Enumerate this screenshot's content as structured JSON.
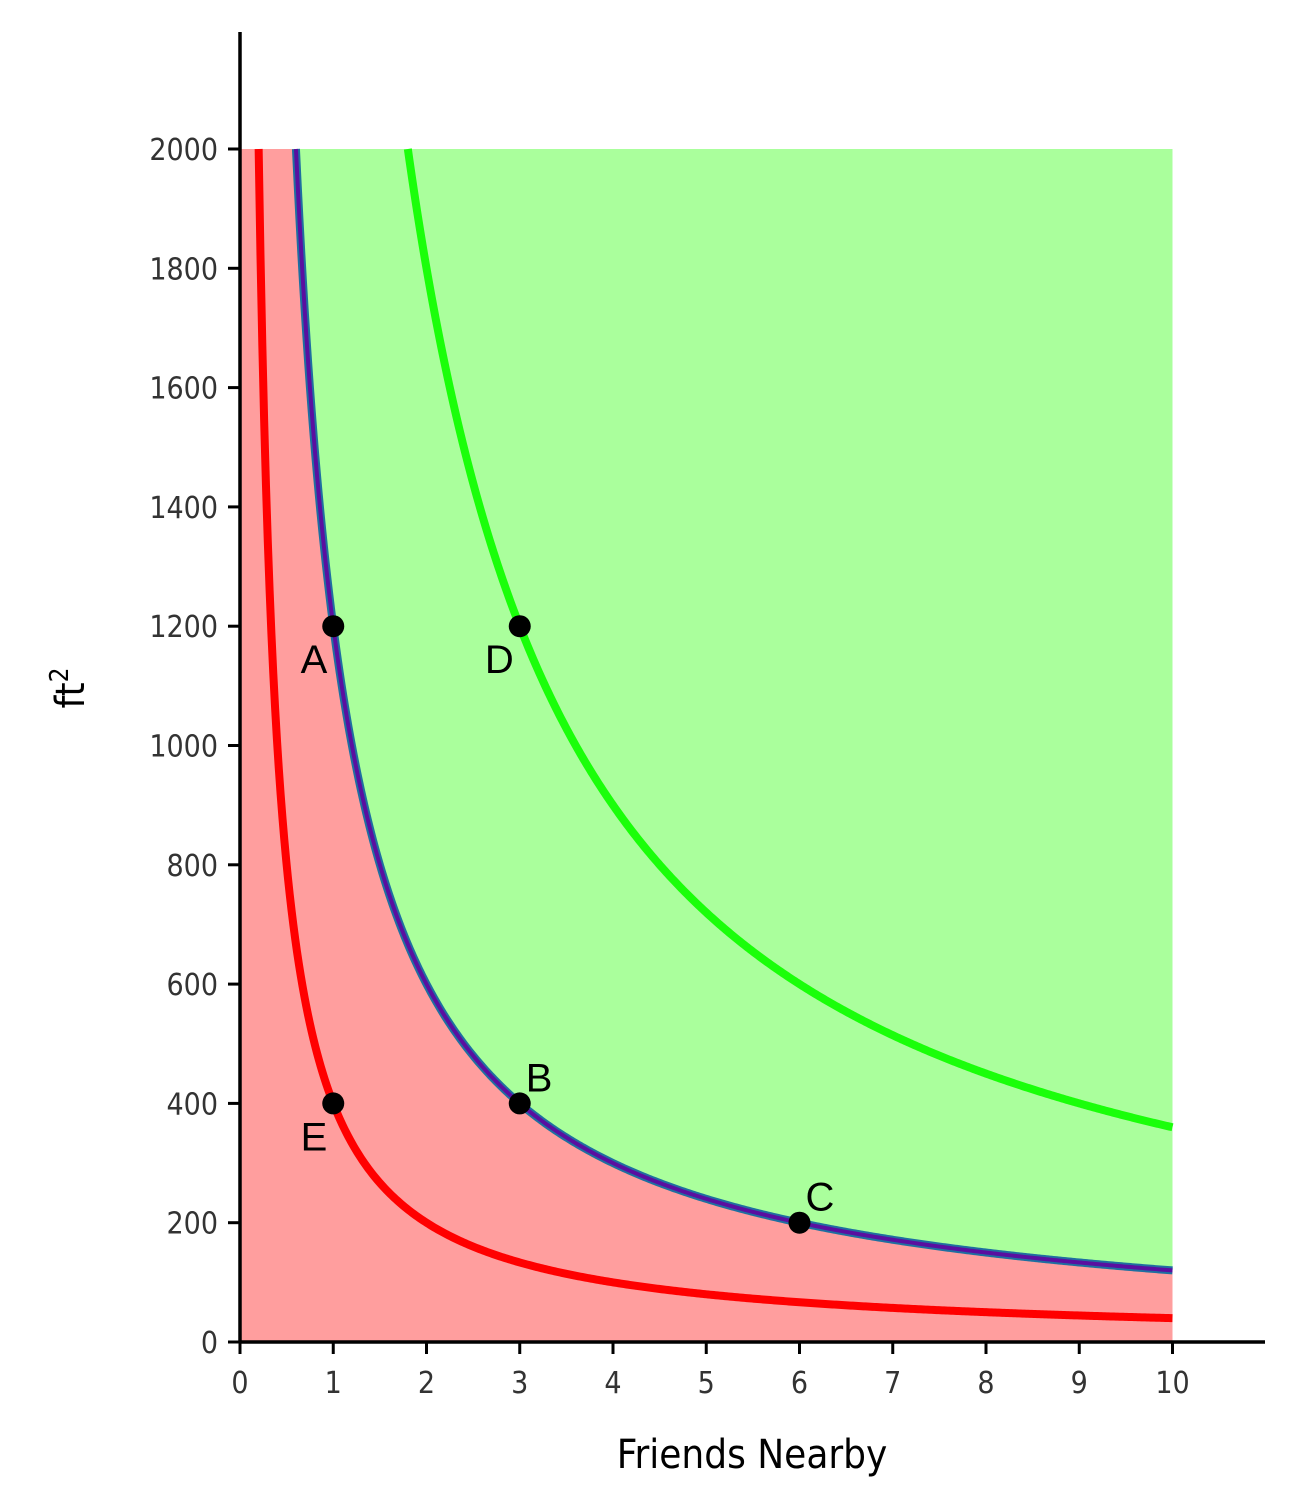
{
  "chart_data": {
    "type": "line",
    "xlabel": "Friends Nearby",
    "ylabel": "ft",
    "ylabel_superscript": "2",
    "xlim": [
      0,
      11
    ],
    "ylim": [
      0,
      2200
    ],
    "x_ticks": [
      0,
      1,
      2,
      3,
      4,
      5,
      6,
      7,
      8,
      9,
      10
    ],
    "y_ticks": [
      0,
      200,
      400,
      600,
      800,
      1000,
      1200,
      1400,
      1600,
      1800,
      2000
    ],
    "grid": false,
    "legend": "none",
    "regions": [
      {
        "fill": "#ff9e9e",
        "description": "below indifference curve xy=1200",
        "x_range": [
          0,
          10
        ],
        "y_range": [
          0,
          2000
        ]
      },
      {
        "fill": "#aaff9c",
        "description": "above indifference curve xy=1200",
        "x_range": [
          0,
          10
        ],
        "y_range": [
          0,
          2000
        ]
      }
    ],
    "series": [
      {
        "color": "#ff0000",
        "formula_k": 400,
        "x_max": 10,
        "y_max": 2000
      },
      {
        "color": "#5a0fa0",
        "formula_k": 1200,
        "x_max": 10,
        "y_max": 2000
      },
      {
        "color": "#1aff0a",
        "formula_k": 3600,
        "x_max": 10,
        "y_max": 2000
      }
    ],
    "points": [
      {
        "label": "A",
        "x": 1,
        "y": 1200,
        "label_pos": "below-left"
      },
      {
        "label": "B",
        "x": 3,
        "y": 400,
        "label_pos": "above-right"
      },
      {
        "label": "C",
        "x": 6,
        "y": 200,
        "label_pos": "above-right"
      },
      {
        "label": "D",
        "x": 3,
        "y": 1200,
        "label_pos": "below-left"
      },
      {
        "label": "E",
        "x": 1,
        "y": 400,
        "label_pos": "below-left"
      }
    ]
  }
}
